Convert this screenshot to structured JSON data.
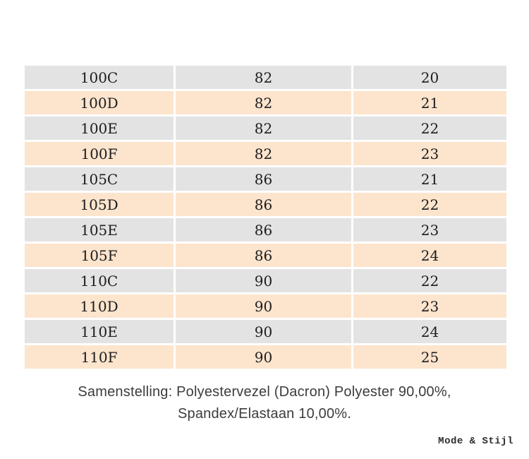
{
  "table": {
    "rows": [
      [
        "100C",
        "82",
        "20"
      ],
      [
        "100D",
        "82",
        "21"
      ],
      [
        "100E",
        "82",
        "22"
      ],
      [
        "100F",
        "82",
        "23"
      ],
      [
        "105C",
        "86",
        "21"
      ],
      [
        "105D",
        "86",
        "22"
      ],
      [
        "105E",
        "86",
        "23"
      ],
      [
        "105F",
        "86",
        "24"
      ],
      [
        "110C",
        "90",
        "22"
      ],
      [
        "110D",
        "90",
        "23"
      ],
      [
        "110E",
        "90",
        "24"
      ],
      [
        "110F",
        "90",
        "25"
      ]
    ],
    "row_color_gray": "#e3e3e3",
    "row_color_peach": "#fce4cd"
  },
  "composition": {
    "line1": "Samenstelling: Polyestervezel (Dacron) Polyester 90,00%,",
    "line2": "Spandex/Elastaan 10,00%."
  },
  "watermark": {
    "text": "Mode & Stijl"
  }
}
